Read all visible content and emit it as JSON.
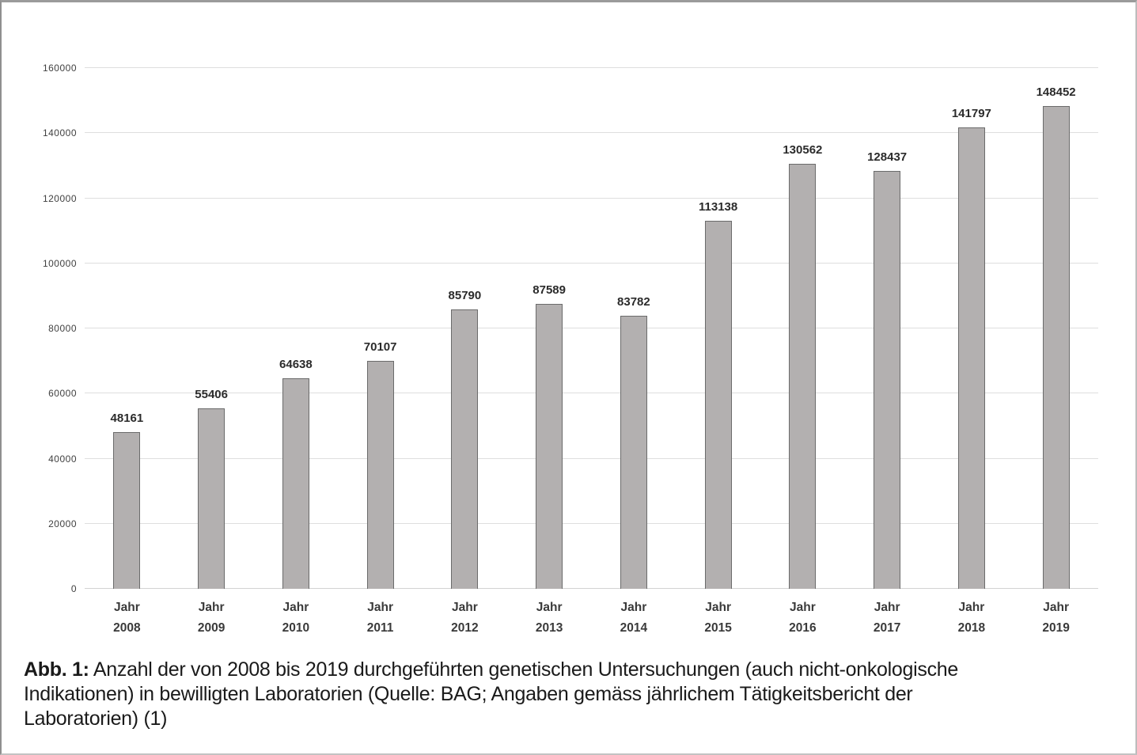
{
  "chart_data": {
    "type": "bar",
    "title": "",
    "categories": [
      "2008",
      "2009",
      "2010",
      "2011",
      "2012",
      "2013",
      "2014",
      "2015",
      "2016",
      "2017",
      "2018",
      "2019"
    ],
    "category_prefix": "Jahr",
    "values": [
      48161,
      55406,
      64638,
      70107,
      85790,
      87589,
      83782,
      113138,
      130562,
      128437,
      141797,
      148452
    ],
    "data_labels": [
      48161,
      55406,
      64638,
      70107,
      85790,
      87589,
      83782,
      113138,
      130562,
      128437,
      141797,
      148452
    ],
    "xlabel": "",
    "ylabel": "",
    "ylim": [
      0,
      160000
    ],
    "yticks": [
      0,
      20000,
      40000,
      60000,
      80000,
      100000,
      120000,
      140000,
      160000
    ],
    "grid": true,
    "legend": false,
    "bar_color": "#b3b0b0",
    "bar_border_color": "#6b6b6b"
  },
  "caption": {
    "label": "Abb. 1:",
    "line1_rest": " Anzahl der von 2008 bis 2019 durchgeführten genetischen Untersuchungen (auch nicht-onkologische",
    "line2": "Indikationen) in bewilligten Laboratorien (Quelle: BAG; Angaben gemäss jährlichem Tätigkeitsbericht der",
    "line3": "Laboratorien) (1)"
  }
}
